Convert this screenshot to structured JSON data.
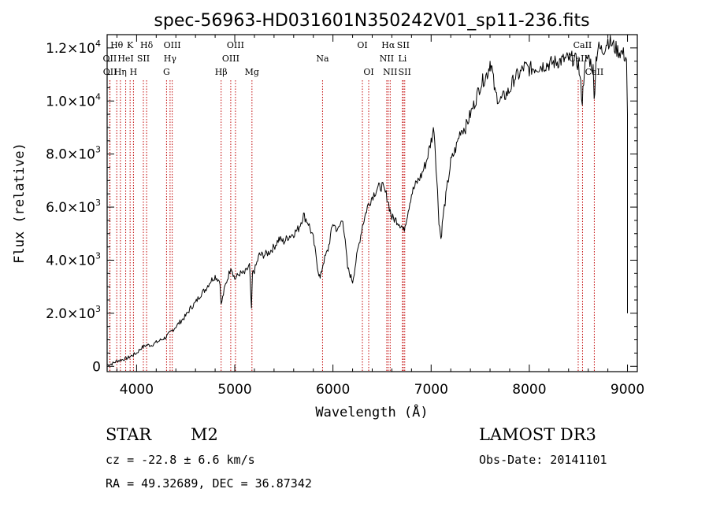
{
  "chart_data": {
    "type": "line",
    "title": "spec-56963-HD031601N350242V01_sp11-236.fits",
    "xlabel": "Wavelength (Å)",
    "ylabel": "Flux (relative)",
    "xlim": [
      3700,
      9100
    ],
    "ylim": [
      -200,
      12500
    ],
    "x_ticks": [
      4000,
      5000,
      6000,
      7000,
      8000,
      9000
    ],
    "x_tick_labels": [
      "4000",
      "5000",
      "6000",
      "7000",
      "8000",
      "9000"
    ],
    "y_ticks": [
      0,
      2000,
      4000,
      6000,
      8000,
      10000,
      12000
    ],
    "y_tick_labels": [
      {
        "mant": "0",
        "exp": ""
      },
      {
        "mant": "2.0×10",
        "exp": "3"
      },
      {
        "mant": "4.0×10",
        "exp": "3"
      },
      {
        "mant": "6.0×10",
        "exp": "3"
      },
      {
        "mant": "8.0×10",
        "exp": "3"
      },
      {
        "mant": "1.0×10",
        "exp": "4"
      },
      {
        "mant": "1.2×10",
        "exp": "4"
      }
    ],
    "series": [
      {
        "name": "flux",
        "x": [
          3700,
          3750,
          3800,
          3850,
          3900,
          3950,
          4000,
          4050,
          4100,
          4150,
          4200,
          4250,
          4300,
          4350,
          4400,
          4450,
          4500,
          4550,
          4600,
          4650,
          4700,
          4750,
          4800,
          4850,
          4860,
          4900,
          4950,
          4960,
          5000,
          5050,
          5100,
          5150,
          5170,
          5180,
          5200,
          5250,
          5300,
          5350,
          5400,
          5450,
          5500,
          5550,
          5600,
          5650,
          5700,
          5750,
          5800,
          5850,
          5870,
          5900,
          5950,
          6000,
          6050,
          6100,
          6150,
          6200,
          6250,
          6300,
          6350,
          6400,
          6450,
          6500,
          6550,
          6600,
          6650,
          6700,
          6720,
          6750,
          6800,
          6850,
          6900,
          6950,
          7000,
          7030,
          7050,
          7080,
          7100,
          7120,
          7150,
          7200,
          7250,
          7300,
          7350,
          7400,
          7450,
          7500,
          7550,
          7580,
          7600,
          7620,
          7650,
          7700,
          7750,
          7800,
          7850,
          7900,
          7950,
          8000,
          8100,
          8200,
          8300,
          8400,
          8450,
          8500,
          8540,
          8560,
          8600,
          8650,
          8660,
          8680,
          8700,
          8750,
          8800,
          8850,
          8900,
          8950,
          8990,
          9000
        ],
        "y": [
          50,
          100,
          200,
          250,
          300,
          400,
          500,
          700,
          800,
          800,
          900,
          1000,
          1100,
          1300,
          1500,
          1700,
          1900,
          2200,
          2400,
          2700,
          2900,
          3200,
          3400,
          3200,
          2300,
          3000,
          3600,
          3800,
          3300,
          3500,
          3500,
          3800,
          2100,
          3500,
          3600,
          4200,
          4200,
          4300,
          4500,
          4800,
          4700,
          4900,
          5000,
          5200,
          5700,
          5400,
          4800,
          3600,
          3300,
          3900,
          4400,
          5400,
          5100,
          5600,
          3700,
          3200,
          4300,
          5300,
          6000,
          6400,
          6700,
          6800,
          6400,
          5600,
          5500,
          5300,
          5100,
          5600,
          6500,
          6900,
          7200,
          7700,
          8500,
          9000,
          7600,
          5500,
          4800,
          5600,
          6400,
          7700,
          8200,
          8900,
          9000,
          9500,
          10000,
          10600,
          10900,
          11100,
          11500,
          11200,
          10300,
          10000,
          10200,
          10400,
          10900,
          11000,
          11300,
          11200,
          11300,
          11400,
          11500,
          11600,
          11600,
          11400,
          10000,
          11200,
          11700,
          11200,
          10000,
          11600,
          12000,
          11900,
          12300,
          12100,
          11900,
          11800,
          11600,
          9500
        ]
      }
    ],
    "line_markers": [
      {
        "label": "Hθ",
        "wl": 3798,
        "row": 0
      },
      {
        "label": "OII",
        "wl": 3727,
        "row": 1
      },
      {
        "label": "OII",
        "wl": 3729,
        "row": 2
      },
      {
        "label": "Hη",
        "wl": 3835,
        "row": 2
      },
      {
        "label": "HeI",
        "wl": 3889,
        "row": 1
      },
      {
        "label": "K",
        "wl": 3934,
        "row": 0
      },
      {
        "label": "H",
        "wl": 3968,
        "row": 2
      },
      {
        "label": "SII",
        "wl": 4069,
        "row": 1
      },
      {
        "label": "Hδ",
        "wl": 4102,
        "row": 0
      },
      {
        "label": "G",
        "wl": 4305,
        "row": 2
      },
      {
        "label": "OIII",
        "wl": 4363,
        "row": 0
      },
      {
        "label": "Hγ",
        "wl": 4341,
        "row": 1
      },
      {
        "label": "Hβ",
        "wl": 4861,
        "row": 2
      },
      {
        "label": "OIII",
        "wl": 4959,
        "row": 1
      },
      {
        "label": "OIII",
        "wl": 5007,
        "row": 0
      },
      {
        "label": "Mg",
        "wl": 5175,
        "row": 2
      },
      {
        "label": "Na",
        "wl": 5894,
        "row": 1
      },
      {
        "label": "OI",
        "wl": 6300,
        "row": 0
      },
      {
        "label": "OI",
        "wl": 6364,
        "row": 2
      },
      {
        "label": "NII",
        "wl": 6548,
        "row": 1
      },
      {
        "label": "Hα",
        "wl": 6563,
        "row": 0
      },
      {
        "label": "NII",
        "wl": 6583,
        "row": 2
      },
      {
        "label": "SII",
        "wl": 6716,
        "row": 0
      },
      {
        "label": "Li",
        "wl": 6708,
        "row": 1
      },
      {
        "label": "SII",
        "wl": 6731,
        "row": 2
      },
      {
        "label": "CaII",
        "wl": 8498,
        "row": 1
      },
      {
        "label": "CaII",
        "wl": 8542,
        "row": 0
      },
      {
        "label": "CaII",
        "wl": 8662,
        "row": 2
      }
    ],
    "colors": {
      "spectrum": "#000000",
      "markers": "#c00000",
      "axes": "#000000"
    }
  },
  "info": {
    "object_type": "STAR",
    "subclass": "M2",
    "survey": "LAMOST DR3",
    "redshift": "cz = -22.8 ± 6.6 km/s",
    "obs_date": "Obs-Date: 20141101",
    "coords": "RA =  49.32689, DEC =  36.87342"
  }
}
